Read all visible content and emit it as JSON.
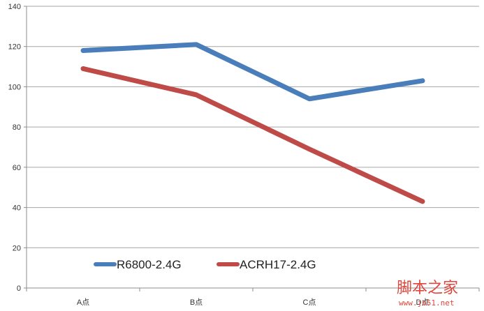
{
  "chart_data": {
    "type": "line",
    "categories": [
      "A点",
      "B点",
      "C点",
      "D点"
    ],
    "ylim": [
      0,
      140
    ],
    "yticks": [
      0,
      20,
      40,
      60,
      80,
      100,
      120,
      140
    ],
    "grid": true,
    "legend_position": "bottom-left",
    "series": [
      {
        "name": "R6800-2.4G",
        "color": "#4a7ebb",
        "values": [
          118,
          121,
          94,
          103
        ]
      },
      {
        "name": "ACRH17-2.4G",
        "color": "#be4b48",
        "values": [
          109,
          96,
          69,
          43
        ]
      }
    ],
    "title": "",
    "xlabel": "",
    "ylabel": ""
  },
  "watermark": {
    "text": "脚本之家",
    "url": "www.jb51.net",
    "color": "#e0463c"
  }
}
